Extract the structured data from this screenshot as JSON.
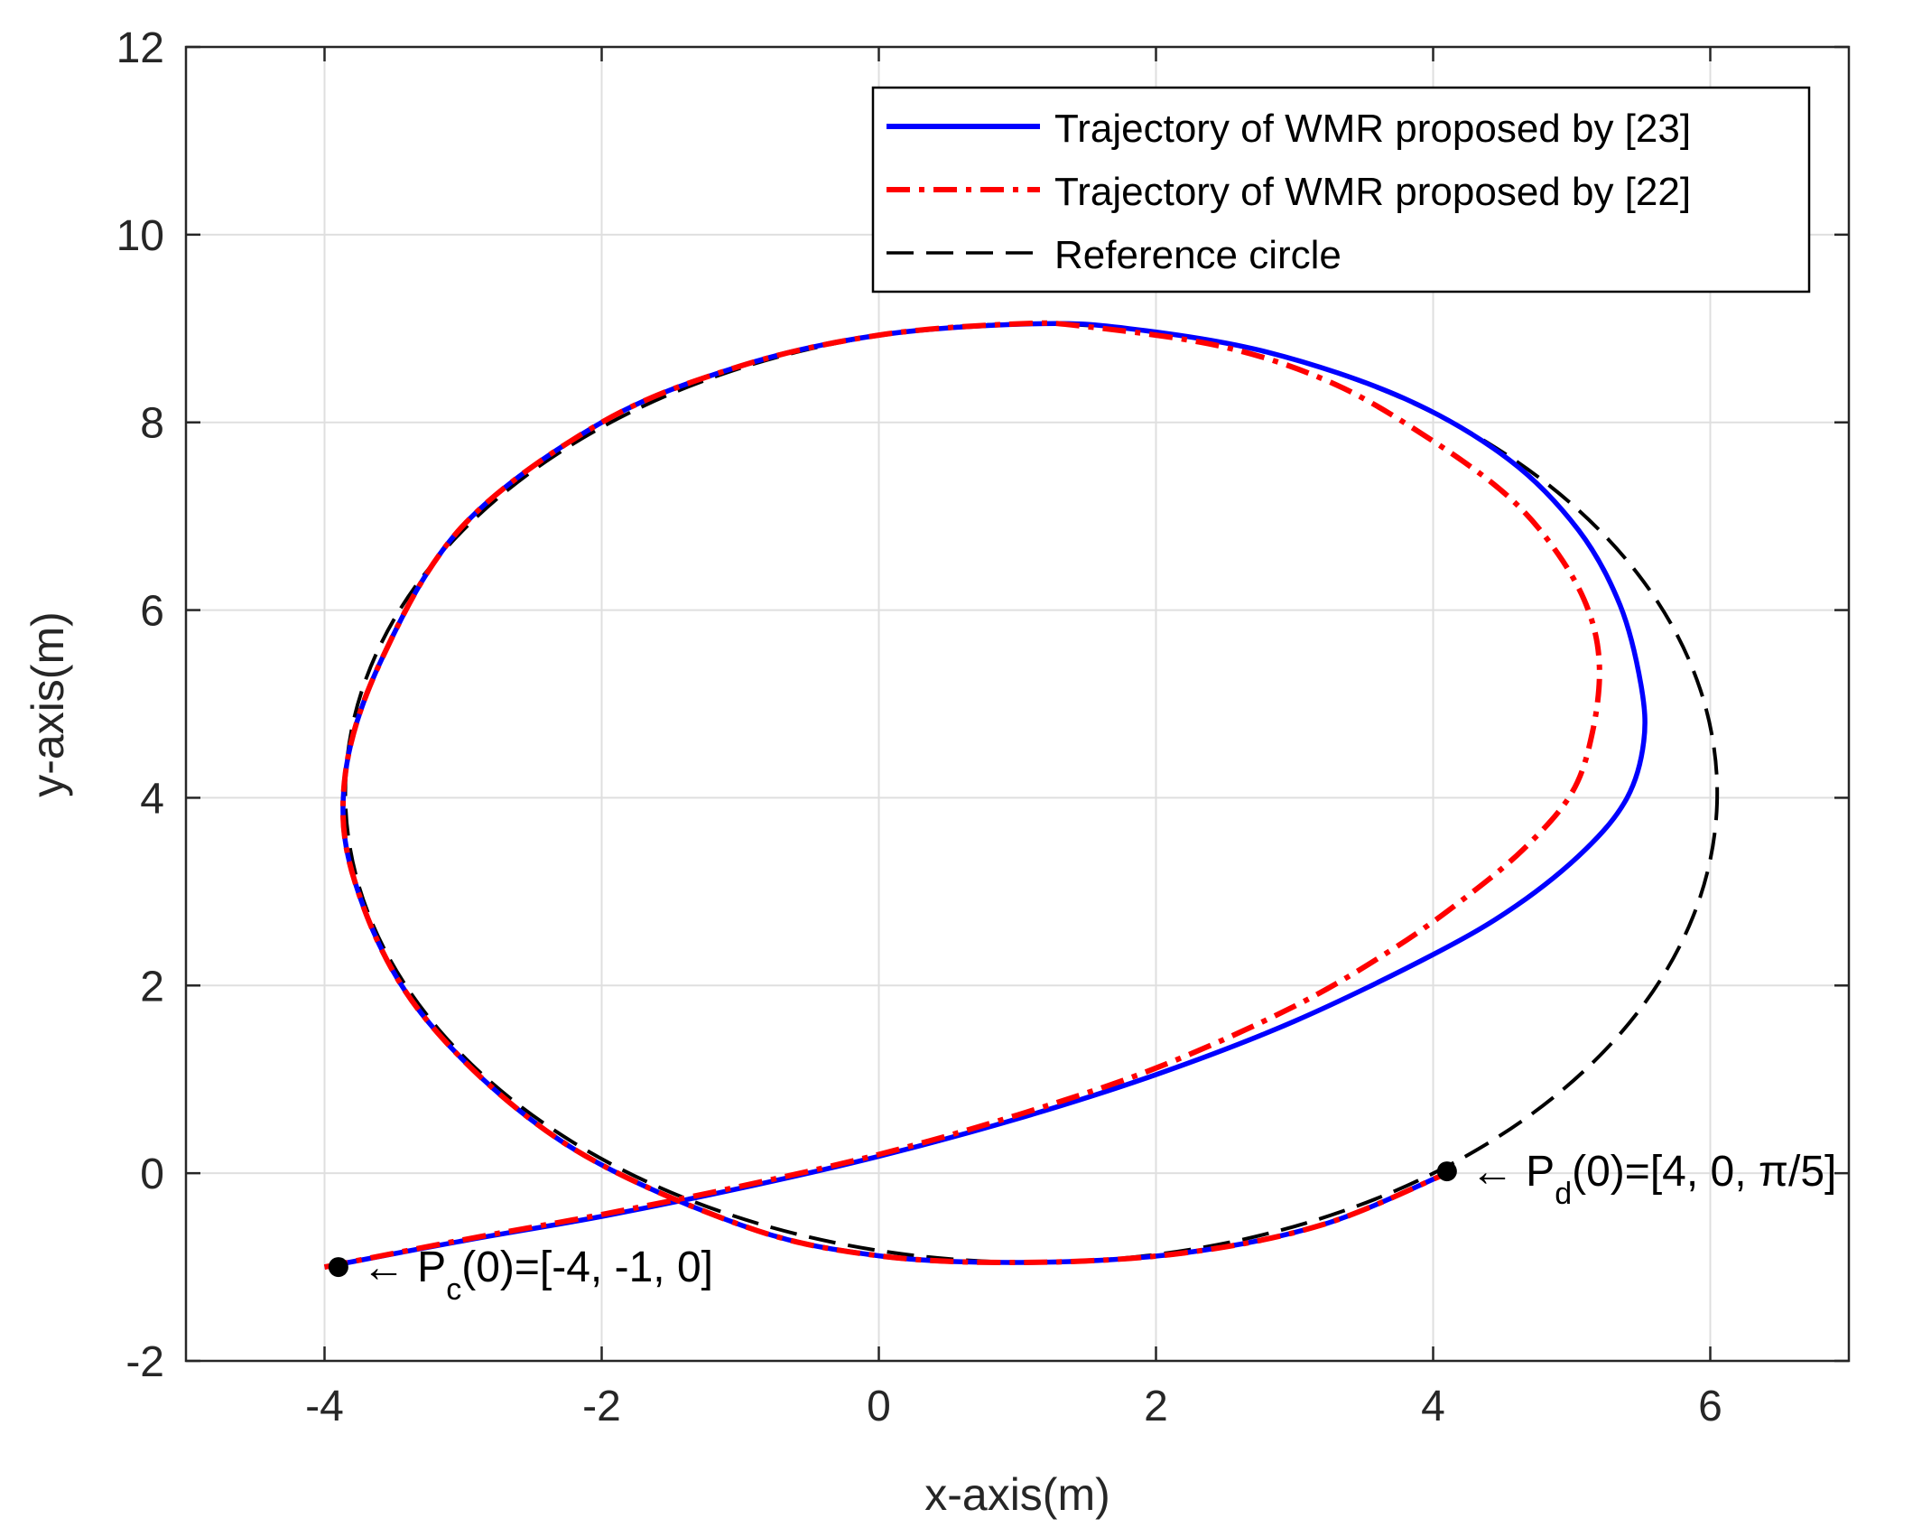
{
  "chart_data": {
    "type": "line",
    "title": "",
    "xlabel": "x-axis(m)",
    "ylabel": "y-axis(m)",
    "xlim": [
      -5,
      7
    ],
    "ylim": [
      -2,
      12
    ],
    "xticks": [
      -4,
      -2,
      0,
      2,
      4,
      6
    ],
    "yticks": [
      -2,
      0,
      2,
      4,
      6,
      8,
      10,
      12
    ],
    "grid": true,
    "legend_position": "top-right",
    "series": [
      {
        "name": "Trajectory of WMR proposed by [23]",
        "color": "#0000ff",
        "style": "solid",
        "points": [
          [
            -4.0,
            -1.0
          ],
          [
            -3.0,
            -0.72
          ],
          [
            -2.0,
            -0.46
          ],
          [
            -1.0,
            -0.16
          ],
          [
            0.0,
            0.18
          ],
          [
            1.0,
            0.58
          ],
          [
            2.0,
            1.05
          ],
          [
            3.0,
            1.62
          ],
          [
            4.0,
            2.33
          ],
          [
            4.6,
            2.85
          ],
          [
            5.1,
            3.45
          ],
          [
            5.4,
            4.0
          ],
          [
            5.52,
            4.6
          ],
          [
            5.5,
            5.2
          ],
          [
            5.35,
            6.05
          ],
          [
            5.05,
            6.85
          ],
          [
            4.55,
            7.6
          ],
          [
            3.8,
            8.25
          ],
          [
            2.8,
            8.75
          ],
          [
            1.8,
            9.0
          ],
          [
            1.1,
            9.05
          ],
          [
            0.0,
            8.93
          ],
          [
            -1.0,
            8.6
          ],
          [
            -2.0,
            8.0
          ],
          [
            -3.0,
            6.9
          ],
          [
            -3.58,
            5.5
          ],
          [
            -3.85,
            4.25
          ],
          [
            -3.78,
            3.1
          ],
          [
            -3.3,
            1.7
          ],
          [
            -2.3,
            0.35
          ],
          [
            -1.0,
            -0.55
          ],
          [
            0.0,
            -0.88
          ],
          [
            1.1,
            -0.95
          ],
          [
            2.2,
            -0.85
          ],
          [
            3.2,
            -0.55
          ],
          [
            4.1,
            0.0
          ]
        ]
      },
      {
        "name": "Trajectory of WMR proposed by [22]",
        "color": "#ff0000",
        "style": "dashdot",
        "points": [
          [
            -4.0,
            -1.0
          ],
          [
            -3.0,
            -0.71
          ],
          [
            -2.0,
            -0.44
          ],
          [
            -1.0,
            -0.14
          ],
          [
            0.0,
            0.2
          ],
          [
            1.0,
            0.62
          ],
          [
            2.0,
            1.12
          ],
          [
            3.0,
            1.78
          ],
          [
            3.7,
            2.38
          ],
          [
            4.2,
            2.9
          ],
          [
            4.65,
            3.45
          ],
          [
            5.0,
            4.05
          ],
          [
            5.15,
            4.7
          ],
          [
            5.2,
            5.4
          ],
          [
            5.12,
            6.0
          ],
          [
            4.9,
            6.6
          ],
          [
            4.55,
            7.2
          ],
          [
            4.0,
            7.8
          ],
          [
            3.3,
            8.4
          ],
          [
            2.5,
            8.8
          ],
          [
            1.5,
            9.02
          ],
          [
            1.0,
            9.05
          ],
          [
            0.0,
            8.93
          ],
          [
            -1.0,
            8.6
          ],
          [
            -2.0,
            8.0
          ],
          [
            -3.0,
            6.9
          ],
          [
            -3.58,
            5.5
          ],
          [
            -3.85,
            4.25
          ],
          [
            -3.78,
            3.1
          ],
          [
            -3.3,
            1.7
          ],
          [
            -2.3,
            0.35
          ],
          [
            -1.0,
            -0.55
          ],
          [
            0.0,
            -0.88
          ],
          [
            1.1,
            -0.95
          ],
          [
            2.2,
            -0.85
          ],
          [
            3.2,
            -0.55
          ],
          [
            4.1,
            0.0
          ]
        ]
      },
      {
        "name": "Reference circle",
        "color": "#000000",
        "style": "dashed",
        "shape": "ellipse",
        "center": [
          1.1,
          4.05
        ],
        "radii": [
          4.95,
          5.0
        ]
      }
    ],
    "markers": [
      {
        "point": [
          -3.9,
          -1.0
        ],
        "label_main": "← P",
        "label_sub": "c",
        "label_rest": "(0)=[-4, -1, 0]"
      },
      {
        "point": [
          4.1,
          0.02
        ],
        "label_main": "← P",
        "label_sub": "d",
        "label_rest": "(0)=[4, 0, π/5]"
      }
    ]
  }
}
